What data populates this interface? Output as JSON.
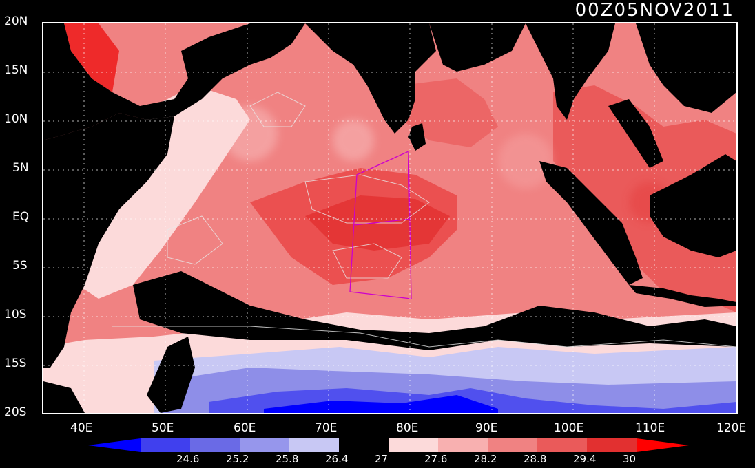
{
  "title": "00Z05NOV2011",
  "lat_labels": [
    "20N",
    "15N",
    "10N",
    "5N",
    "EQ",
    "5S",
    "10S",
    "15S",
    "20S"
  ],
  "lon_labels": [
    "40E",
    "50E",
    "60E",
    "70E",
    "80E",
    "90E",
    "100E",
    "110E",
    "120E"
  ],
  "colorbar": {
    "labels": [
      "24.6",
      "25.2",
      "25.8",
      "26.4",
      "27",
      "27.6",
      "28.2",
      "28.8",
      "29.4",
      "30"
    ],
    "colors": [
      "#0000ff",
      "#4040ee",
      "#6a6ae6",
      "#9696ec",
      "#c8c8f4",
      "#000000",
      "#fcdada",
      "#f8b0b0",
      "#f08282",
      "#ea5a5a",
      "#e23030",
      "#ff0000"
    ]
  },
  "colors": {
    "land": "#000000",
    "box_outline": "#cc00cc",
    "contour": "#e8e8e8"
  }
}
